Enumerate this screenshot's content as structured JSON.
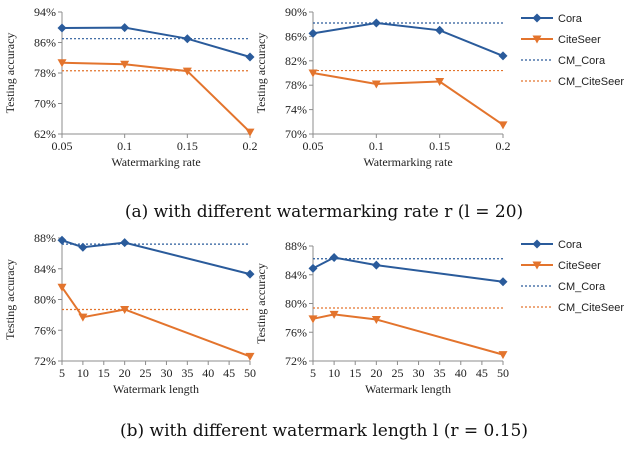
{
  "colors": {
    "cora": "#2a5b9b",
    "citeseer": "#e3742d",
    "axis": "#8c8c8c",
    "text": "#222222"
  },
  "captions": {
    "a": "(a) with different watermarking rate r (l = 20)",
    "b": "(b) with different watermark length l (r = 0.15)"
  },
  "legend": [
    {
      "label": "Cora",
      "marker": "diamond",
      "style": "solid",
      "color": "#2a5b9b"
    },
    {
      "label": "CiteSeer",
      "marker": "triangle-down",
      "style": "solid",
      "color": "#e3742d"
    },
    {
      "label": "CM_Cora",
      "marker": "none",
      "style": "dotted",
      "color": "#2a5b9b"
    },
    {
      "label": "CM_CiteSeer",
      "marker": "none",
      "style": "dotted",
      "color": "#e3742d"
    }
  ],
  "chart_data": [
    {
      "type": "line",
      "xlabel": "Watermarking rate",
      "ylabel": "Testing accuracy",
      "x": [
        0.05,
        0.1,
        0.15,
        0.2
      ],
      "xticks": [
        "0.05",
        "0.1",
        "0.15",
        "0.2"
      ],
      "ylim": [
        62,
        94
      ],
      "yticks": [
        "62%",
        "70%",
        "78%",
        "86%",
        "94%"
      ],
      "series": [
        {
          "name": "Cora",
          "values": [
            89.8,
            89.9,
            87.0,
            82.2
          ]
        },
        {
          "name": "CiteSeer",
          "values": [
            80.7,
            80.3,
            78.5,
            62.5
          ]
        }
      ],
      "reference": [
        {
          "name": "CM_Cora",
          "value": 87.0
        },
        {
          "name": "CM_CiteSeer",
          "value": 78.6
        }
      ]
    },
    {
      "type": "line",
      "xlabel": "Watermarking rate",
      "ylabel": "Testing accuracy",
      "x": [
        0.05,
        0.1,
        0.15,
        0.2
      ],
      "xticks": [
        "0.05",
        "0.1",
        "0.15",
        "0.2"
      ],
      "ylim": [
        70,
        90
      ],
      "yticks": [
        "70%",
        "74%",
        "78%",
        "82%",
        "86%",
        "90%"
      ],
      "series": [
        {
          "name": "Cora",
          "values": [
            86.5,
            88.2,
            87.0,
            82.8
          ]
        },
        {
          "name": "CiteSeer",
          "values": [
            80.0,
            78.2,
            78.6,
            71.5
          ]
        }
      ],
      "reference": [
        {
          "name": "CM_Cora",
          "value": 88.2
        },
        {
          "name": "CM_CiteSeer",
          "value": 80.4
        }
      ]
    },
    {
      "type": "line",
      "xlabel": "Watermark length",
      "ylabel": "Testing accuracy",
      "x": [
        5,
        10,
        20,
        50
      ],
      "xticks": [
        "5",
        "10",
        "15",
        "20",
        "25",
        "30",
        "35",
        "40",
        "45",
        "50"
      ],
      "ylim": [
        72,
        88
      ],
      "yticks": [
        "72%",
        "76%",
        "80%",
        "84%",
        "88%"
      ],
      "series": [
        {
          "name": "Cora",
          "values": [
            87.7,
            86.8,
            87.4,
            83.3
          ]
        },
        {
          "name": "CiteSeer",
          "values": [
            81.6,
            77.7,
            78.7,
            72.6
          ]
        }
      ],
      "reference": [
        {
          "name": "CM_Cora",
          "value": 87.2
        },
        {
          "name": "CM_CiteSeer",
          "value": 78.7
        }
      ]
    },
    {
      "type": "line",
      "xlabel": "Watermark length",
      "ylabel": "Testing accuracy",
      "x": [
        5,
        10,
        20,
        50
      ],
      "xticks": [
        "5",
        "10",
        "15",
        "20",
        "25",
        "30",
        "35",
        "40",
        "45",
        "50"
      ],
      "ylim": [
        72,
        90
      ],
      "yticks": [
        "72%",
        "76%",
        "80%",
        "84%",
        "88%"
      ],
      "series": [
        {
          "name": "Cora",
          "values": [
            86.5,
            88.2,
            87.0,
            84.4
          ]
        },
        {
          "name": "CiteSeer",
          "values": [
            78.6,
            79.3,
            78.5,
            73.0
          ]
        }
      ],
      "reference": [
        {
          "name": "CM_Cora",
          "value": 88.0
        },
        {
          "name": "CM_CiteSeer",
          "value": 80.3
        }
      ]
    }
  ]
}
